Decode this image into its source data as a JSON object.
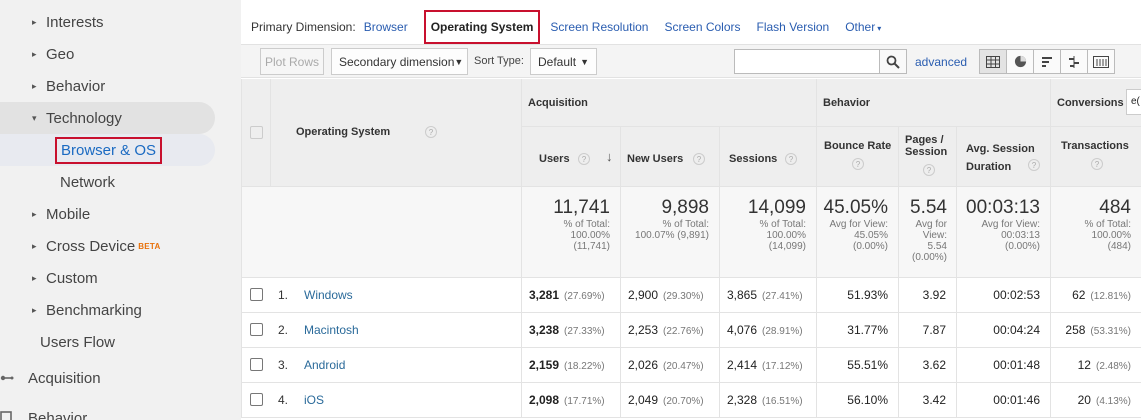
{
  "sidebar": {
    "items": [
      {
        "label": "Interests",
        "caret": "▸"
      },
      {
        "label": "Geo",
        "caret": "▸"
      },
      {
        "label": "Behavior",
        "caret": "▸"
      },
      {
        "label": "Technology",
        "caret": "▾"
      },
      {
        "label": "Browser & OS"
      },
      {
        "label": "Network"
      },
      {
        "label": "Mobile",
        "caret": "▸"
      },
      {
        "label": "Cross Device",
        "caret": "▸",
        "badge": "BETA"
      },
      {
        "label": "Custom",
        "caret": "▸"
      },
      {
        "label": "Benchmarking",
        "caret": "▸"
      },
      {
        "label": "Users Flow"
      },
      {
        "label": "Acquisition"
      },
      {
        "label": "Behavior"
      }
    ]
  },
  "dimension_bar": {
    "label": "Primary Dimension:",
    "browser": "Browser",
    "operating_system": "Operating System",
    "screen_resolution": "Screen Resolution",
    "screen_colors": "Screen Colors",
    "flash_version": "Flash Version",
    "other": "Other"
  },
  "toolbar": {
    "plot_rows": "Plot Rows",
    "secondary_dimension": "Secondary dimension",
    "sort_type_label": "Sort Type:",
    "sort_default": "Default",
    "advanced": "advanced"
  },
  "table": {
    "groups": {
      "acquisition": "Acquisition",
      "behavior": "Behavior",
      "conversions": "Conversions",
      "conversions_select": "e("
    },
    "headers": {
      "dimension": "Operating System",
      "users": "Users",
      "new_users": "New Users",
      "sessions": "Sessions",
      "bounce_rate": "Bounce Rate",
      "pages_session": "Pages / Session",
      "avg_session_duration": "Avg. Session Duration",
      "transactions": "Transactions"
    },
    "totals": {
      "users": {
        "value": "11,741",
        "l1": "% of Total:",
        "l2": "100.00%",
        "l3": "(11,741)"
      },
      "new_users": {
        "value": "9,898",
        "l1": "% of Total:",
        "l2": "100.07% (9,891)",
        "l3": ""
      },
      "sessions": {
        "value": "14,099",
        "l1": "% of Total:",
        "l2": "100.00%",
        "l3": "(14,099)"
      },
      "bounce_rate": {
        "value": "45.05%",
        "l1": "Avg for View:",
        "l2": "45.05%",
        "l3": "(0.00%)"
      },
      "pages_session": {
        "value": "5.54",
        "l1": "Avg for",
        "l2": "View:",
        "l3": "5.54",
        "l4": "(0.00%)"
      },
      "avg_session_duration": {
        "value": "00:03:13",
        "l1": "Avg for View:",
        "l2": "00:03:13",
        "l3": "(0.00%)"
      },
      "transactions": {
        "value": "484",
        "l1": "% of Total:",
        "l2": "100.00%",
        "l3": "(484)"
      }
    },
    "rows": [
      {
        "num": "1.",
        "name": "Windows",
        "users": "3,281",
        "users_pct": "(27.69%)",
        "new_users": "2,900",
        "new_users_pct": "(29.30%)",
        "sessions": "3,865",
        "sessions_pct": "(27.41%)",
        "bounce": "51.93%",
        "pages": "3.92",
        "duration": "00:02:53",
        "trans": "62",
        "trans_pct": "(12.81%)"
      },
      {
        "num": "2.",
        "name": "Macintosh",
        "users": "3,238",
        "users_pct": "(27.33%)",
        "new_users": "2,253",
        "new_users_pct": "(22.76%)",
        "sessions": "4,076",
        "sessions_pct": "(28.91%)",
        "bounce": "31.77%",
        "pages": "7.87",
        "duration": "00:04:24",
        "trans": "258",
        "trans_pct": "(53.31%)"
      },
      {
        "num": "3.",
        "name": "Android",
        "users": "2,159",
        "users_pct": "(18.22%)",
        "new_users": "2,026",
        "new_users_pct": "(20.47%)",
        "sessions": "2,414",
        "sessions_pct": "(17.12%)",
        "bounce": "55.51%",
        "pages": "3.62",
        "duration": "00:01:48",
        "trans": "12",
        "trans_pct": "(2.48%)"
      },
      {
        "num": "4.",
        "name": "iOS",
        "users": "2,098",
        "users_pct": "(17.71%)",
        "new_users": "2,049",
        "new_users_pct": "(20.70%)",
        "sessions": "2,328",
        "sessions_pct": "(16.51%)",
        "bounce": "56.10%",
        "pages": "3.42",
        "duration": "00:01:46",
        "trans": "20",
        "trans_pct": "(4.13%)"
      }
    ]
  },
  "colors": {
    "link": "#2a5db0",
    "highlight_box": "#c8102e",
    "sidebar_bg": "#f1f1f1",
    "beta": "#e8710a"
  }
}
